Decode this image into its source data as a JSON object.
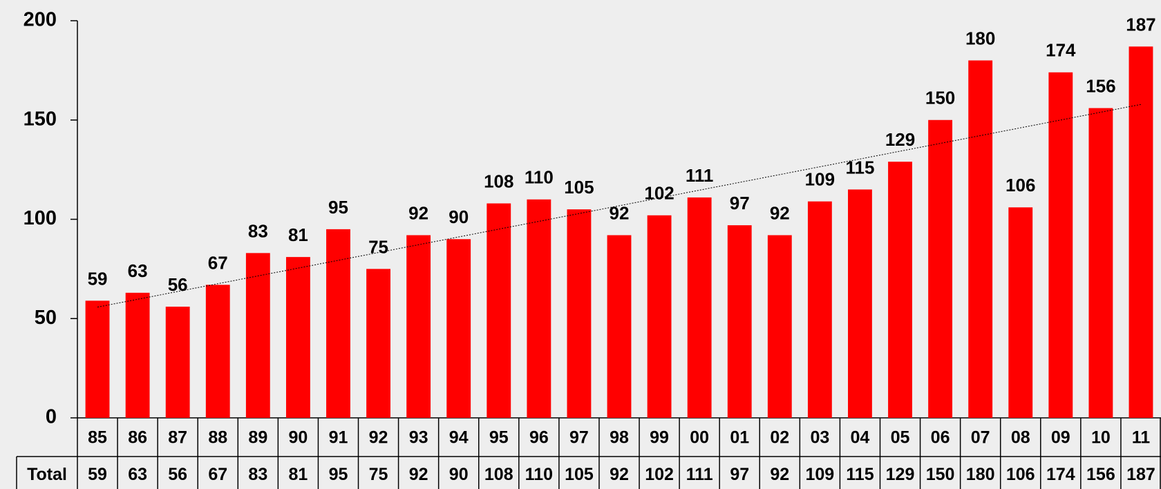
{
  "chart_data": {
    "type": "bar",
    "categories": [
      "85",
      "86",
      "87",
      "88",
      "89",
      "90",
      "91",
      "92",
      "93",
      "94",
      "95",
      "96",
      "97",
      "98",
      "99",
      "00",
      "01",
      "02",
      "03",
      "04",
      "05",
      "06",
      "07",
      "08",
      "09",
      "10",
      "11"
    ],
    "values": [
      59,
      63,
      56,
      67,
      83,
      81,
      95,
      75,
      92,
      90,
      108,
      110,
      105,
      92,
      102,
      111,
      97,
      92,
      109,
      115,
      129,
      150,
      180,
      106,
      174,
      156,
      187
    ],
    "color": "#ff0000",
    "ylim": [
      0,
      200
    ],
    "yticks": [
      0,
      50,
      100,
      150,
      200
    ],
    "grid": false,
    "trendline": true,
    "data_labels": true,
    "table_row_label": "Total"
  }
}
